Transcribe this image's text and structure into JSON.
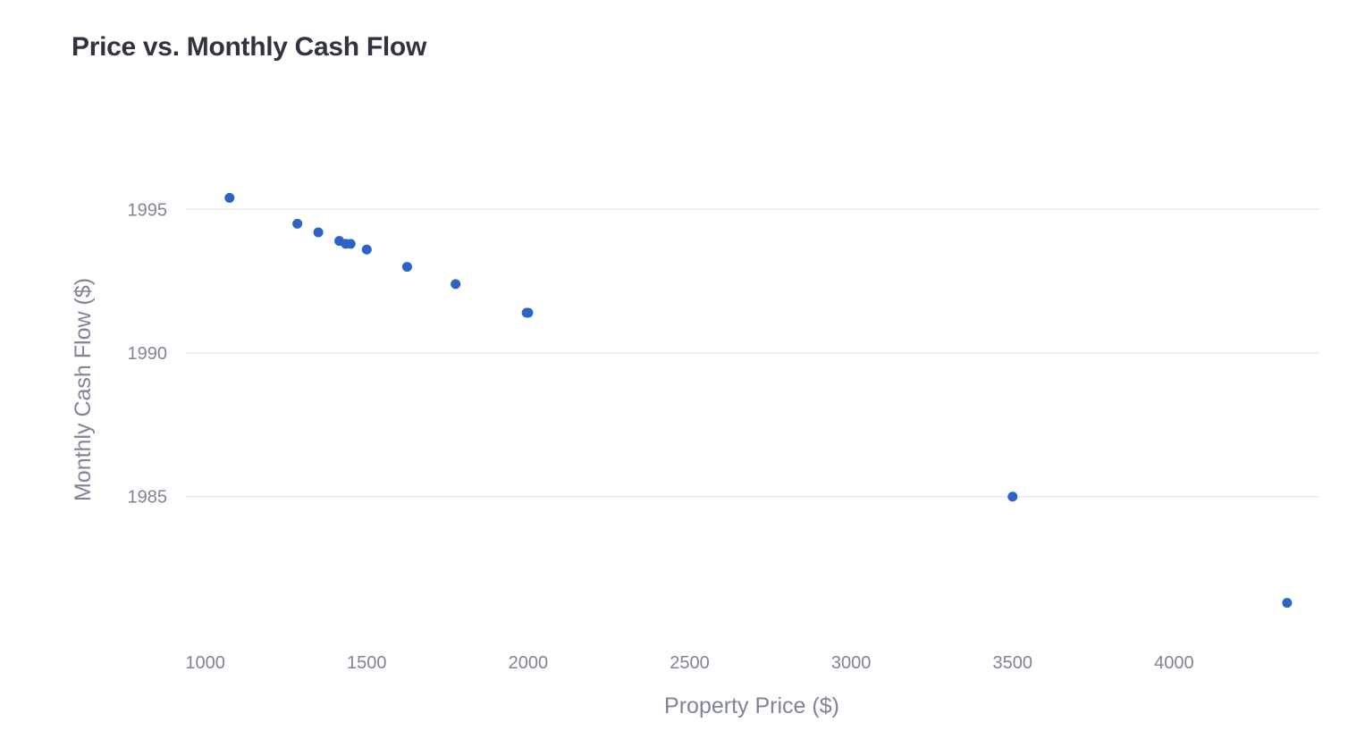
{
  "chart_data": {
    "type": "scatter",
    "title": "Price vs. Monthly Cash Flow",
    "xlabel": "Property Price ($)",
    "ylabel": "Monthly Cash Flow ($)",
    "xlim": [
      940,
      4450
    ],
    "ylim": [
      1980.2,
      1999.8
    ],
    "x_ticks": [
      1000,
      1500,
      2000,
      2500,
      3000,
      3500,
      4000
    ],
    "y_ticks": [
      1985,
      1990,
      1995
    ],
    "grid": "horizontal",
    "color": "#2c63c6",
    "points": [
      {
        "x": 1075,
        "y": 1995.4
      },
      {
        "x": 1285,
        "y": 1994.5
      },
      {
        "x": 1350,
        "y": 1994.2
      },
      {
        "x": 1415,
        "y": 1993.9
      },
      {
        "x": 1435,
        "y": 1993.8
      },
      {
        "x": 1450,
        "y": 1993.8
      },
      {
        "x": 1500,
        "y": 1993.6
      },
      {
        "x": 1625,
        "y": 1993.0
      },
      {
        "x": 1775,
        "y": 1992.4
      },
      {
        "x": 1995,
        "y": 1991.4
      },
      {
        "x": 2000,
        "y": 1991.4
      },
      {
        "x": 3500,
        "y": 1985.0
      },
      {
        "x": 4350,
        "y": 1981.3
      }
    ]
  }
}
